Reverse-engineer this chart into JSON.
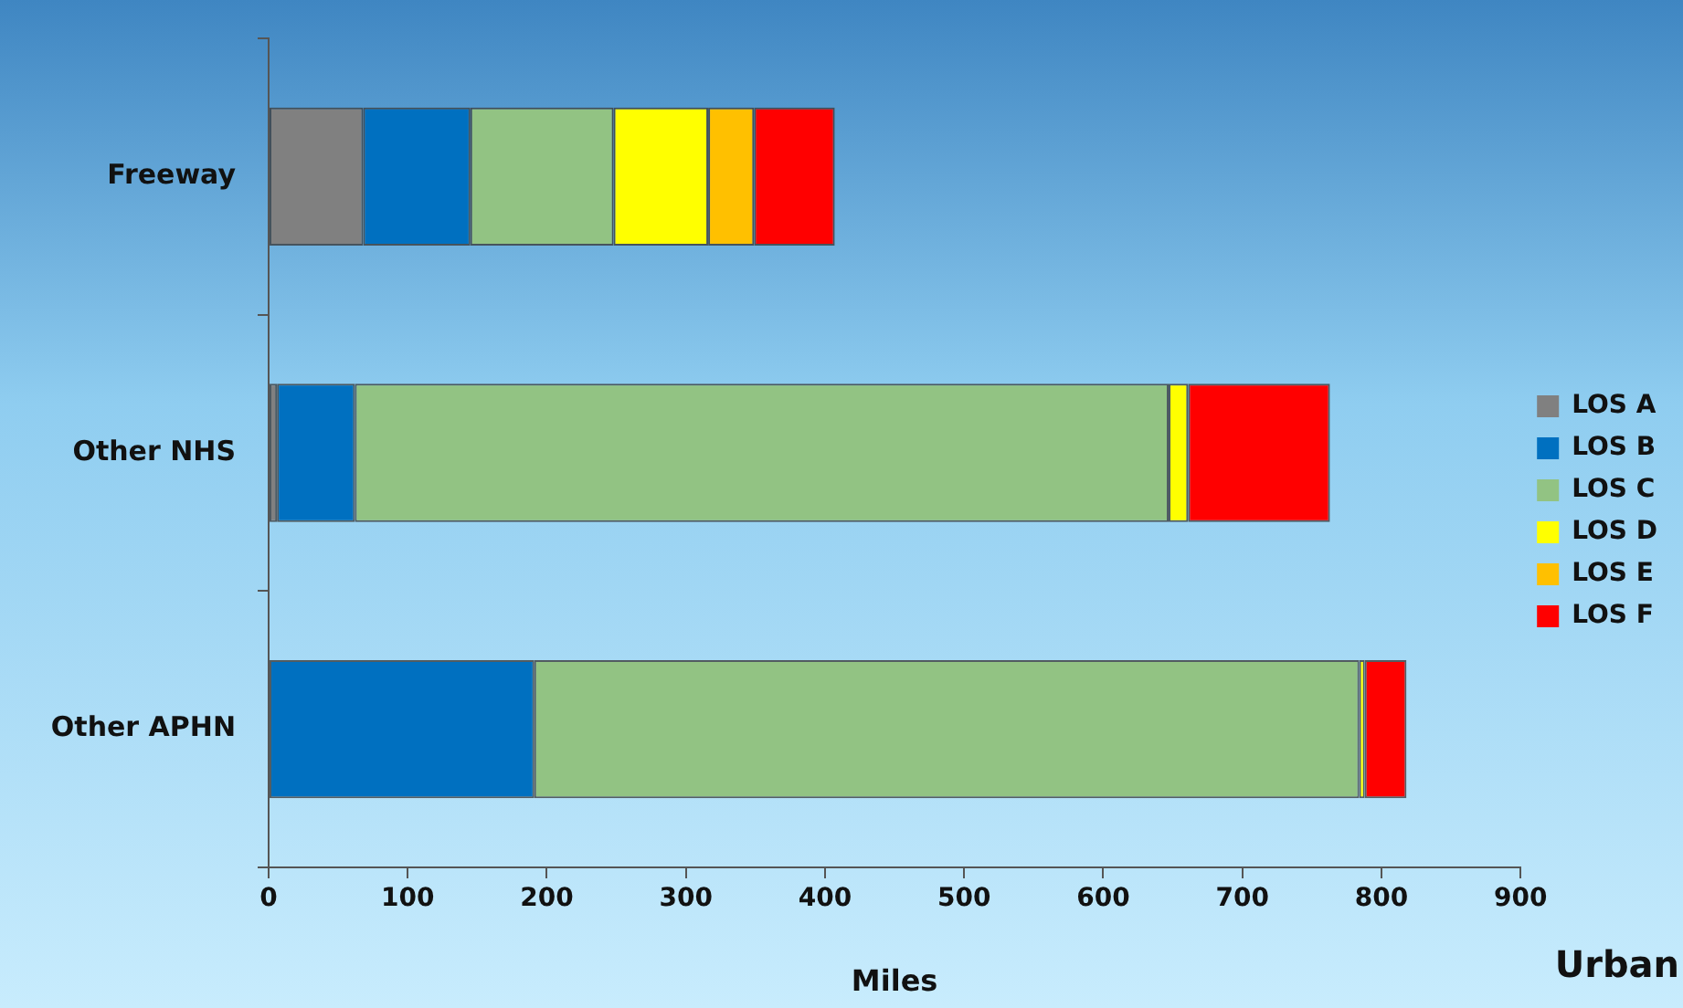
{
  "chart_data": {
    "type": "bar",
    "orientation": "horizontal",
    "stacked": true,
    "xlabel": "Miles",
    "categories": [
      "Freeway",
      "Other NHS",
      "Other APHN"
    ],
    "series": [
      {
        "name": "LOS A",
        "color": "#808080",
        "values": [
          68,
          6,
          0
        ]
      },
      {
        "name": "LOS B",
        "color": "#0070c0",
        "values": [
          77,
          56,
          191
        ]
      },
      {
        "name": "LOS C",
        "color": "#92c383",
        "values": [
          103,
          585,
          593
        ]
      },
      {
        "name": "LOS D",
        "color": "#ffff00",
        "values": [
          68,
          14,
          4
        ]
      },
      {
        "name": "LOS E",
        "color": "#ffc000",
        "values": [
          33,
          0,
          0
        ]
      },
      {
        "name": "LOS F",
        "color": "#ff0000",
        "values": [
          58,
          102,
          30
        ]
      }
    ],
    "xlim": [
      0,
      900
    ],
    "xticks": [
      0,
      100,
      200,
      300,
      400,
      500,
      600,
      700,
      800,
      900
    ],
    "grid": false,
    "legend": "right",
    "annotations": [
      "Urban"
    ]
  }
}
